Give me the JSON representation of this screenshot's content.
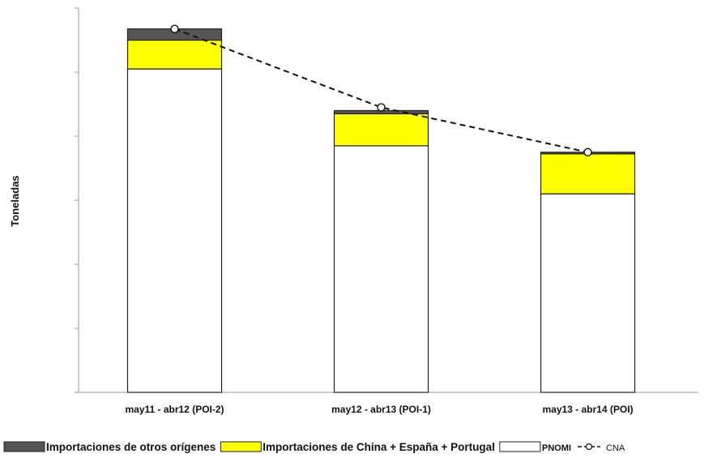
{
  "chart_data": {
    "type": "bar",
    "stacked": true,
    "ylabel": "Toneladas",
    "xlabel": "",
    "ylim": [
      0,
      120
    ],
    "y_ticks": [
      0,
      20,
      40,
      60,
      80,
      100,
      120
    ],
    "y_tick_labels_visible": false,
    "grid": false,
    "legend_position": "bottom",
    "categories": [
      "may11 - abr12 (POI-2)",
      "may12 - abr13 (POI-1)",
      "may13 - abr14 (POI)"
    ],
    "series": [
      {
        "name": "PNOMI",
        "kind": "bar",
        "color": "#ffffff",
        "values": [
          101,
          77,
          62
        ]
      },
      {
        "name": "Importaciones de China + España + Portugal",
        "kind": "bar",
        "color": "#ffff00",
        "values": [
          9,
          10,
          12.5
        ]
      },
      {
        "name": "Importaciones de otros orígenes",
        "kind": "bar",
        "color": "#555555",
        "values": [
          3.5,
          1,
          0.5
        ]
      },
      {
        "name": "CNA",
        "kind": "line",
        "style": "dashed",
        "marker": "open-circle",
        "color": "#111111",
        "values": [
          113.5,
          89,
          75
        ]
      }
    ]
  }
}
